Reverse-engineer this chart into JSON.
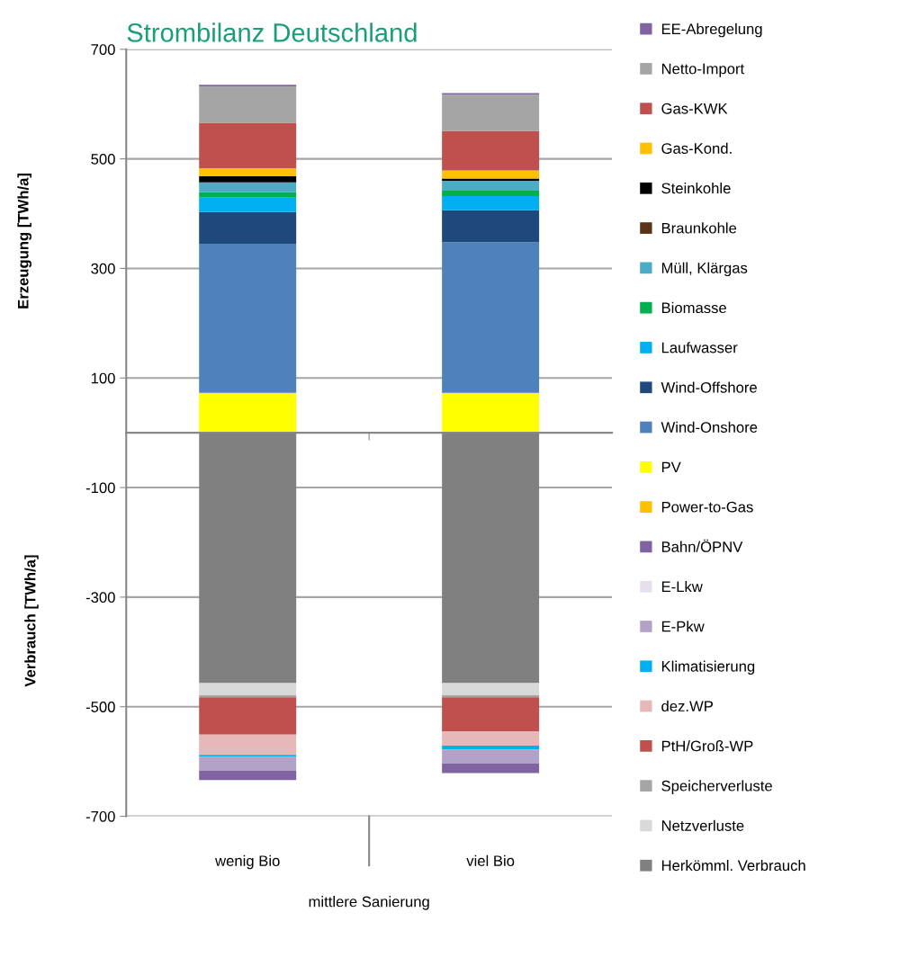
{
  "chart_data": {
    "type": "bar",
    "title": "Strombilanz Deutschland",
    "ylabel": "Erzeugung [TWh/a]",
    "annotations": [
      "Verbrauch [TWh/a]",
      "mittlere Sanierung"
    ],
    "categories": [
      "wenig Bio",
      "viel Bio"
    ],
    "stacked": true,
    "ylim": [
      -700,
      700
    ],
    "yticks": [
      -700,
      -500,
      -300,
      -100,
      100,
      300,
      500,
      700
    ],
    "grid": "y",
    "legend": "right",
    "series": [
      {
        "name": "Herkömml. Verbrauch",
        "color": "#808080",
        "values": [
          -457,
          -457
        ]
      },
      {
        "name": "Netzverluste",
        "color": "#d9d9d9",
        "values": [
          -22,
          -22
        ]
      },
      {
        "name": "Speicherverluste",
        "color": "#a5a5a5",
        "values": [
          -4,
          -4
        ]
      },
      {
        "name": "PtH/Groß-WP",
        "color": "#c0504d",
        "values": [
          -68,
          -62
        ]
      },
      {
        "name": "dez.WP",
        "color": "#e6b9b8",
        "values": [
          -37,
          -26
        ]
      },
      {
        "name": "Klimatisierung",
        "color": "#00b0f0",
        "values": [
          -3,
          -7
        ]
      },
      {
        "name": "E-Pkw",
        "color": "#b3a2c7",
        "values": [
          -26,
          -26
        ]
      },
      {
        "name": "E-Lkw",
        "color": "#e6e0ec",
        "values": [
          0,
          0
        ]
      },
      {
        "name": "Bahn/ÖPNV",
        "color": "#8064a2",
        "values": [
          -17,
          -17
        ]
      },
      {
        "name": "Power-to-Gas",
        "color": "#ffc000",
        "values": [
          0,
          0
        ]
      },
      {
        "name": "PV",
        "color": "#ffff00",
        "values": [
          73,
          73
        ]
      },
      {
        "name": "Wind-Onshore",
        "color": "#4f81bd",
        "values": [
          272,
          275
        ]
      },
      {
        "name": "Wind-Offshore",
        "color": "#1f497d",
        "values": [
          58,
          58
        ]
      },
      {
        "name": "Laufwasser",
        "color": "#00b0f0",
        "values": [
          26,
          26
        ]
      },
      {
        "name": "Biomasse",
        "color": "#00b050",
        "values": [
          10,
          10
        ]
      },
      {
        "name": "Müll, Klärgas",
        "color": "#4bacc6",
        "values": [
          18,
          18
        ]
      },
      {
        "name": "Braunkohle",
        "color": "#5c3317",
        "values": [
          0,
          0
        ]
      },
      {
        "name": "Steinkohle",
        "color": "#000000",
        "values": [
          11,
          4
        ]
      },
      {
        "name": "Gas-Kond.",
        "color": "#ffc000",
        "values": [
          15,
          15
        ]
      },
      {
        "name": "Gas-KWK",
        "color": "#c0504d",
        "values": [
          83,
          72
        ]
      },
      {
        "name": "Netto-Import",
        "color": "#a5a5a5",
        "values": [
          66,
          66
        ]
      },
      {
        "name": "EE-Abregelung",
        "color": "#8064a2",
        "values": [
          3,
          3
        ]
      }
    ]
  }
}
